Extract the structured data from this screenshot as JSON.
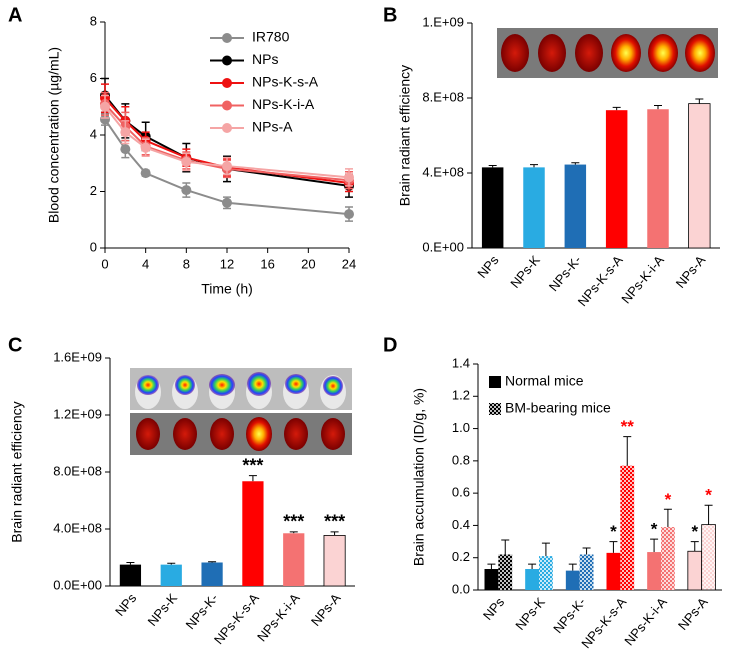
{
  "chart_data": [
    {
      "type": "line",
      "panel_label": "A",
      "xlabel": "Time (h)",
      "ylabel": "Blood concentration (µg/mL)",
      "x": [
        0,
        2,
        4,
        8,
        12,
        24
      ],
      "xlim": [
        0,
        24
      ],
      "xticks": [
        0,
        4,
        8,
        12,
        16,
        20,
        24
      ],
      "ylim": [
        0,
        8
      ],
      "yticks": [
        0,
        2,
        4,
        6,
        8
      ],
      "series": [
        {
          "name": "IR780",
          "color": "#8c8c8c",
          "values": [
            4.55,
            3.5,
            2.65,
            2.05,
            1.6,
            1.2
          ],
          "errors": [
            0.2,
            0.3,
            0.1,
            0.25,
            0.2,
            0.25
          ]
        },
        {
          "name": "NPs",
          "color": "#000000",
          "values": [
            5.4,
            4.5,
            3.95,
            3.2,
            2.8,
            2.2
          ],
          "errors": [
            0.6,
            0.6,
            0.5,
            0.5,
            0.45,
            0.4
          ]
        },
        {
          "name": "NPs-K-s-A",
          "color": "#ee1111",
          "values": [
            5.3,
            4.5,
            3.8,
            3.2,
            2.85,
            2.3
          ],
          "errors": [
            0.5,
            0.5,
            0.3,
            0.3,
            0.3,
            0.3
          ]
        },
        {
          "name": "NPs-K-i-A",
          "color": "#f06262",
          "values": [
            5.1,
            4.3,
            3.6,
            3.1,
            2.8,
            2.4
          ],
          "errors": [
            0.4,
            0.5,
            0.3,
            0.3,
            0.3,
            0.3
          ]
        },
        {
          "name": "NPs-A",
          "color": "#f5a5a5",
          "values": [
            5.0,
            4.1,
            3.55,
            3.05,
            2.9,
            2.5
          ],
          "errors": [
            0.4,
            0.4,
            0.3,
            0.3,
            0.3,
            0.3
          ]
        }
      ]
    },
    {
      "type": "bar",
      "panel_label": "B",
      "ylabel": "Brain radiant efficiency",
      "categories": [
        "NPs",
        "NPs-K",
        "NPs-K-",
        "NPs-K-s-A",
        "NPs-K-i-A",
        "NPs-A"
      ],
      "colors": [
        "#000000",
        "#29abe2",
        "#1f6eb5",
        "#ff0000",
        "#f47272",
        "#fbd3d3"
      ],
      "values": [
        430000000,
        430000000,
        445000000,
        735000000,
        740000000,
        770000000
      ],
      "errors": [
        10000000,
        15000000,
        10000000,
        15000000,
        20000000,
        25000000
      ],
      "ylim": [
        0,
        1200000000
      ],
      "yticks": [
        {
          "value": 0,
          "label": "0.E+00"
        },
        {
          "value": 400000000,
          "label": "4.E+08"
        },
        {
          "value": 800000000,
          "label": "8.E+08"
        },
        {
          "value": 1200000000,
          "label": "1.E+09"
        }
      ]
    },
    {
      "type": "bar",
      "panel_label": "C",
      "ylabel": "Brain radiant efficiency",
      "categories": [
        "NPs",
        "NPs-K",
        "NPs-K-",
        "NPs-K-s-A",
        "NPs-K-i-A",
        "NPs-A"
      ],
      "colors": [
        "#000000",
        "#29abe2",
        "#1f6eb5",
        "#ff0000",
        "#f47272",
        "#fbd3d3"
      ],
      "values": [
        150000000,
        150000000,
        165000000,
        735000000,
        370000000,
        355000000
      ],
      "errors": [
        15000000,
        10000000,
        5000000,
        40000000,
        10000000,
        25000000
      ],
      "annotations": [
        null,
        null,
        null,
        "***",
        "***",
        "***"
      ],
      "ylim": [
        0,
        1600000000
      ],
      "yticks": [
        {
          "value": 0,
          "label": "0.0E+00"
        },
        {
          "value": 400000000,
          "label": "4.0E+08"
        },
        {
          "value": 800000000,
          "label": "8.0E+08"
        },
        {
          "value": 1200000000,
          "label": "1.2E+09"
        },
        {
          "value": 1600000000,
          "label": "1.6E+09"
        }
      ]
    },
    {
      "type": "bar",
      "panel_label": "D",
      "ylabel": "Brain accumulation (ID/g, %)",
      "categories": [
        "NPs",
        "NPs-K",
        "NPs-K-",
        "NPs-K-s-A",
        "NPs-K-i-A",
        "NPs-A"
      ],
      "colors": [
        "#000000",
        "#29abe2",
        "#1f6eb5",
        "#ff0000",
        "#f47272",
        "#fbd3d3"
      ],
      "series": [
        {
          "name": "Normal mice",
          "color": "#000000",
          "pattern": "solid",
          "values": [
            0.13,
            0.13,
            0.12,
            0.23,
            0.235,
            0.24
          ],
          "errors": [
            0.03,
            0.03,
            0.04,
            0.07,
            0.08,
            0.06
          ],
          "annotations": [
            null,
            null,
            null,
            "*",
            "*",
            "*"
          ],
          "annotation_color": "#000000"
        },
        {
          "name": "BM-bearing mice",
          "color": "#000000",
          "pattern": "checker",
          "values": [
            0.22,
            0.21,
            0.22,
            0.77,
            0.39,
            0.405
          ],
          "errors": [
            0.09,
            0.08,
            0.04,
            0.18,
            0.11,
            0.12
          ],
          "annotations": [
            null,
            null,
            null,
            "**",
            "*",
            "*"
          ],
          "annotation_color": "#ff0000"
        }
      ],
      "ylim": [
        0,
        1.4
      ],
      "yticks": [
        {
          "value": 0,
          "label": "0.0"
        },
        0.2,
        0.4,
        0.6,
        0.8,
        {
          "value": 1,
          "label": "1.0"
        },
        1.2,
        1.4
      ]
    }
  ]
}
